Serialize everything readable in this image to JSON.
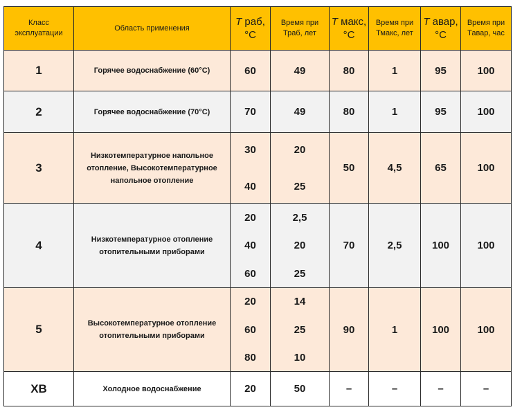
{
  "headers": {
    "class": "Класс эксплуатации",
    "area": "Область применения",
    "t_work_sym": "T",
    "t_work_rest": " раб, °С",
    "time_work": "Время при Траб, лет",
    "t_max_sym": "T",
    "t_max_rest": " макс, °С",
    "time_max": "Время при Тмакс, лет",
    "t_emerg_sym": "T",
    "t_emerg_rest": " авар, °С",
    "time_emerg": "Время при Тавар, час"
  },
  "rows": [
    {
      "class": "1",
      "area": "Горячее водоснабжение (60°С)",
      "t_work": [
        "60"
      ],
      "time_work": [
        "49"
      ],
      "t_max": "80",
      "time_max": "1",
      "t_emerg": "95",
      "time_emerg": "100"
    },
    {
      "class": "2",
      "area": "Горячее водоснабжение (70°С)",
      "t_work": [
        "70"
      ],
      "time_work": [
        "49"
      ],
      "t_max": "80",
      "time_max": "1",
      "t_emerg": "95",
      "time_emerg": "100"
    },
    {
      "class": "3",
      "area": "Низкотемпературное напольное отопление, Высокотемпературное напольное отопление",
      "t_work": [
        "30",
        "40"
      ],
      "time_work": [
        "20",
        "25"
      ],
      "t_max": "50",
      "time_max": "4,5",
      "t_emerg": "65",
      "time_emerg": "100"
    },
    {
      "class": "4",
      "area": "Низкотемпературное отопление отопительными приборами",
      "t_work": [
        "20",
        "40",
        "60"
      ],
      "time_work": [
        "2,5",
        "20",
        "25"
      ],
      "t_max": "70",
      "time_max": "2,5",
      "t_emerg": "100",
      "time_emerg": "100"
    },
    {
      "class": "5",
      "area": "Высокотемпературное отопление отопительными приборами",
      "t_work": [
        "20",
        "60",
        "80"
      ],
      "time_work": [
        "14",
        "25",
        "10"
      ],
      "t_max": "90",
      "time_max": "1",
      "t_emerg": "100",
      "time_emerg": "100"
    },
    {
      "class": "ХВ",
      "area": "Холодное водоснабжение",
      "t_work": [
        "20"
      ],
      "time_work": [
        "50"
      ],
      "t_max": "–",
      "time_max": "–",
      "t_emerg": "–",
      "time_emerg": "–"
    }
  ]
}
